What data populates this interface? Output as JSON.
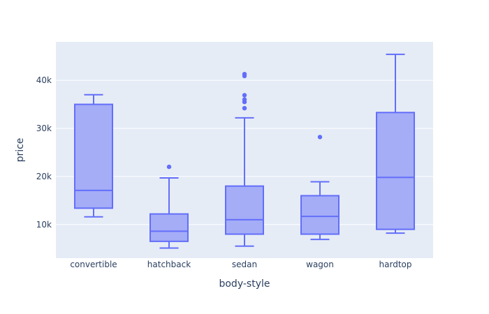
{
  "chart_data": {
    "type": "box",
    "title": "",
    "xlabel": "body-style",
    "ylabel": "price",
    "ylim": [
      3000,
      48000
    ],
    "yticks": [
      10000,
      20000,
      30000,
      40000
    ],
    "ytick_labels": [
      "10k",
      "20k",
      "30k",
      "40k"
    ],
    "grid": true,
    "colors": {
      "plot_bg": "#E5ECF6",
      "box_fill": "#A4ADF6",
      "box_line": "#636EFA",
      "grid": "#ffffff",
      "text": "#2a3f5f"
    },
    "categories": [
      "convertible",
      "hatchback",
      "sedan",
      "wagon",
      "hardtop"
    ],
    "boxes": [
      {
        "category": "convertible",
        "min": 11600,
        "q1": 13400,
        "median": 17100,
        "q3": 35000,
        "max": 37000,
        "outliers": []
      },
      {
        "category": "hatchback",
        "min": 5100,
        "q1": 6500,
        "median": 8600,
        "q3": 12200,
        "max": 19700,
        "outliers": [
          22000
        ]
      },
      {
        "category": "sedan",
        "min": 5500,
        "q1": 8000,
        "median": 11000,
        "q3": 18000,
        "max": 32200,
        "outliers": [
          34200,
          35500,
          36000,
          36900,
          40900,
          41300
        ]
      },
      {
        "category": "wagon",
        "min": 6900,
        "q1": 8000,
        "median": 11700,
        "q3": 16000,
        "max": 18900,
        "outliers": [
          28200
        ]
      },
      {
        "category": "hardtop",
        "min": 8200,
        "q1": 9000,
        "median": 19800,
        "q3": 33300,
        "max": 45400,
        "outliers": []
      }
    ]
  }
}
